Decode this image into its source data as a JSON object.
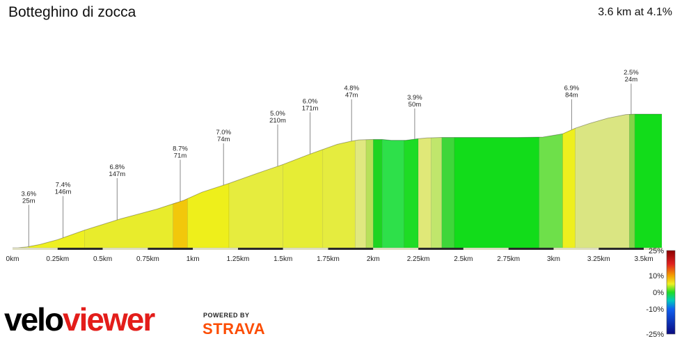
{
  "header": {
    "title": "Botteghino di zocca",
    "summary": "3.6 km at 4.1%"
  },
  "branding": {
    "logo_velo": "velo",
    "logo_viewer": "viewer",
    "powered_by": "POWERED BY",
    "strava": "STRAVA",
    "logo_color": "#000000",
    "accent_color": "#e31d1a",
    "strava_color": "#fc4c02"
  },
  "chart_data": {
    "type": "area",
    "title": "Botteghino di zocca",
    "xlim": [
      0,
      3.6
    ],
    "x_ticks": [
      {
        "value": 0,
        "label": "0km"
      },
      {
        "value": 0.25,
        "label": "0.25km"
      },
      {
        "value": 0.5,
        "label": "0.5km"
      },
      {
        "value": 0.75,
        "label": "0.75km"
      },
      {
        "value": 1,
        "label": "1km"
      },
      {
        "value": 1.25,
        "label": "1.25km"
      },
      {
        "value": 1.5,
        "label": "1.5km"
      },
      {
        "value": 1.75,
        "label": "1.75km"
      },
      {
        "value": 2,
        "label": "2km"
      },
      {
        "value": 2.25,
        "label": "2.25km"
      },
      {
        "value": 2.5,
        "label": "2.5km"
      },
      {
        "value": 2.75,
        "label": "2.75km"
      },
      {
        "value": 3,
        "label": "3km"
      },
      {
        "value": 3.25,
        "label": "3.25km"
      },
      {
        "value": 3.5,
        "label": "3.5km"
      }
    ],
    "profile": {
      "x_km": [
        0,
        0.03,
        0.08,
        0.15,
        0.25,
        0.4,
        0.6,
        0.8,
        0.95,
        1.05,
        1.2,
        1.35,
        1.5,
        1.65,
        1.8,
        1.88,
        1.92,
        2.0,
        2.05,
        2.1,
        2.18,
        2.25,
        2.3,
        2.38,
        2.5,
        2.62,
        2.8,
        2.94,
        3.05,
        3.12,
        3.2,
        3.3,
        3.4,
        3.45,
        3.6
      ],
      "elevation": [
        0,
        0,
        2,
        8,
        20,
        44,
        72,
        96,
        118,
        138,
        160,
        184,
        207,
        233,
        257,
        265,
        268,
        269,
        269,
        267,
        267,
        271,
        273,
        274,
        274,
        274,
        274,
        275,
        283,
        297,
        309,
        322,
        331,
        332,
        332
      ],
      "y_label": "",
      "y_visible": false
    },
    "gradient_segments": [
      {
        "start_km": 0,
        "end_km": 0.09,
        "gradient": 3.6,
        "color": "#e6f06a"
      },
      {
        "start_km": 0.09,
        "end_km": 0.4,
        "gradient": 7.4,
        "color": "#eef022"
      },
      {
        "start_km": 0.4,
        "end_km": 0.89,
        "gradient": 6.8,
        "color": "#e8ec2c"
      },
      {
        "start_km": 0.89,
        "end_km": 0.97,
        "gradient": 8.7,
        "color": "#f2c70b"
      },
      {
        "start_km": 0.97,
        "end_km": 1.2,
        "gradient": 7.0,
        "color": "#eeef1b"
      },
      {
        "start_km": 1.2,
        "end_km": 1.5,
        "gradient": 5.0,
        "color": "#e6ec3e"
      },
      {
        "start_km": 1.5,
        "end_km": 1.72,
        "gradient": 6.0,
        "color": "#e6ed35"
      },
      {
        "start_km": 1.72,
        "end_km": 1.9,
        "gradient": 4.8,
        "color": "#e5ec3f"
      },
      {
        "start_km": 1.9,
        "end_km": 1.96,
        "gradient": 3.5,
        "color": "#e0e880"
      },
      {
        "start_km": 1.96,
        "end_km": 2.0,
        "gradient": 2.0,
        "color": "#b8e05a"
      },
      {
        "start_km": 2.0,
        "end_km": 2.05,
        "gradient": 0.5,
        "color": "#1ed421"
      },
      {
        "start_km": 2.05,
        "end_km": 2.17,
        "gradient": -0.5,
        "color": "#2ee04a"
      },
      {
        "start_km": 2.17,
        "end_km": 2.25,
        "gradient": 0.0,
        "color": "#1edc25"
      },
      {
        "start_km": 2.25,
        "end_km": 2.32,
        "gradient": 3.9,
        "color": "#e0e878"
      },
      {
        "start_km": 2.32,
        "end_km": 2.38,
        "gradient": 2.5,
        "color": "#c0e66c"
      },
      {
        "start_km": 2.38,
        "end_km": 2.45,
        "gradient": 1.0,
        "color": "#3fd63a"
      },
      {
        "start_km": 2.45,
        "end_km": 2.92,
        "gradient": 0.0,
        "color": "#12dc1a"
      },
      {
        "start_km": 2.92,
        "end_km": 3.05,
        "gradient": 1.5,
        "color": "#6ee04a"
      },
      {
        "start_km": 3.05,
        "end_km": 3.12,
        "gradient": 6.9,
        "color": "#eeef1e"
      },
      {
        "start_km": 3.12,
        "end_km": 3.42,
        "gradient": 2.5,
        "color": "#dae582"
      },
      {
        "start_km": 3.42,
        "end_km": 3.45,
        "gradient": 1.0,
        "color": "#82d448"
      },
      {
        "start_km": 3.45,
        "end_km": 3.6,
        "gradient": 0.0,
        "color": "#12dc1a"
      }
    ],
    "annotations": [
      {
        "x_km": 0.09,
        "gradient": "3.6%",
        "length": "25m"
      },
      {
        "x_km": 0.28,
        "gradient": "7.4%",
        "length": "146m"
      },
      {
        "x_km": 0.58,
        "gradient": "6.8%",
        "length": "147m"
      },
      {
        "x_km": 0.93,
        "gradient": "8.7%",
        "length": "71m"
      },
      {
        "x_km": 1.17,
        "gradient": "7.0%",
        "length": "74m"
      },
      {
        "x_km": 1.47,
        "gradient": "5.0%",
        "length": "210m"
      },
      {
        "x_km": 1.65,
        "gradient": "6.0%",
        "length": "171m"
      },
      {
        "x_km": 1.88,
        "gradient": "4.8%",
        "length": "47m"
      },
      {
        "x_km": 2.23,
        "gradient": "3.9%",
        "length": "50m"
      },
      {
        "x_km": 3.1,
        "gradient": "6.9%",
        "length": "84m"
      },
      {
        "x_km": 3.43,
        "gradient": "2.5%",
        "length": "24m"
      }
    ],
    "legend": {
      "type": "gradient-colorbar",
      "placement": "right",
      "labels": [
        "25%",
        "10%",
        "0%",
        "-10%",
        "-25%"
      ],
      "stops": [
        {
          "value": 25,
          "color": "#8b0000"
        },
        {
          "value": 17,
          "color": "#e02020"
        },
        {
          "value": 10,
          "color": "#f5a000"
        },
        {
          "value": 5,
          "color": "#eef022"
        },
        {
          "value": 0,
          "color": "#1edc25"
        },
        {
          "value": -5,
          "color": "#00c8c0"
        },
        {
          "value": -10,
          "color": "#1060f0"
        },
        {
          "value": -25,
          "color": "#0a0a80"
        }
      ]
    },
    "grid": false
  }
}
